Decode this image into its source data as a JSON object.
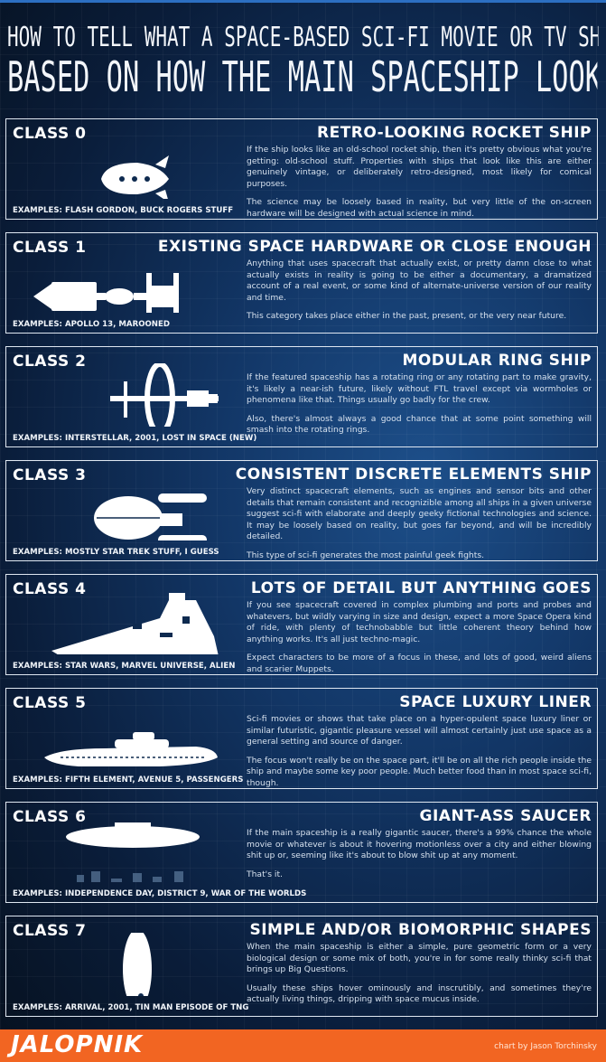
{
  "title": {
    "line1": "HOW TO TELL WHAT A SPACE-BASED SCI-FI MOVIE OR TV SHOW WILL BE LIKE",
    "line2": "BASED ON HOW THE MAIN SPACESHIP LOOKS"
  },
  "panels": [
    {
      "class_label": "CLASS 0",
      "heading": "RETRO-LOOKING ROCKET SHIP",
      "p1": "If the ship looks like an old-school rocket ship, then it's pretty obvious what you're getting: old-school stuff. Properties with ships that look like this are either genuinely vintage, or deliberately retro-designed, most likely for comical purposes.",
      "p2": "The science may be loosely based in reality, but very little of the on-screen hardware will be designed with actual science in mind.",
      "examples": "EXAMPLES: FLASH GORDON, BUCK ROGERS STUFF"
    },
    {
      "class_label": "CLASS 1",
      "heading": "EXISTING SPACE HARDWARE OR CLOSE ENOUGH",
      "p1": "Anything that uses spacecraft that actually exist, or pretty damn close to what actually exists in reality is going to be either a documentary, a dramatized account of a real event, or some kind of alternate-universe version of our reality and time.",
      "p2": "This category takes place either in the past, present, or the very near future.",
      "examples": "EXAMPLES: APOLLO 13, MAROONED"
    },
    {
      "class_label": "CLASS 2",
      "heading": "MODULAR RING SHIP",
      "p1": "If the featured spaceship has a rotating ring or any rotating part to make gravity, it's likely a near-ish future, likely without FTL travel except via wormholes or phenomena like that. Things usually go badly for the crew.",
      "p2": "Also, there's almost always a good chance that at some point something will smash into the rotating rings.",
      "examples": "EXAMPLES: INTERSTELLAR, 2001, LOST IN SPACE (NEW)"
    },
    {
      "class_label": "CLASS 3",
      "heading": "CONSISTENT DISCRETE ELEMENTS SHIP",
      "p1": "Very distinct spacecraft elements, such as engines and sensor bits and other details that remain consistent and recognizible among all ships in a given universe suggest sci-fi with elaborate and deeply geeky fictional technologies and science. It may be loosely based on reality, but goes far beyond, and will be incredibly detailed.",
      "p2": "This type of sci-fi generates the most painful geek fights.",
      "examples": "EXAMPLES: MOSTLY STAR TREK STUFF, I GUESS"
    },
    {
      "class_label": "CLASS 4",
      "heading": "LOTS OF DETAIL BUT ANYTHING GOES",
      "p1": "If you see spacecraft covered in complex plumbing and ports and probes and whatevers, but wildly varying in size and design, expect a more Space Opera kind of ride, with plenty of technobabble but little coherent theory behind how anything works. It's all just techno-magic.",
      "p2": "Expect characters to be more of a focus in these, and lots of good, weird aliens and scarier Muppets.",
      "examples": "EXAMPLES: STAR WARS, MARVEL UNIVERSE, ALIEN"
    },
    {
      "class_label": "CLASS 5",
      "heading": "SPACE LUXURY LINER",
      "p1": "Sci-fi movies or shows that take place on a hyper-opulent space luxury liner or similar futuristic, gigantic pleasure vessel will almost certainly just use space as a general setting and source of danger.",
      "p2": "The focus won't really be on the space part, it'll be on all the rich people inside the ship and maybe some key poor people. Much better food than in most space sci-fi, though.",
      "examples": "EXAMPLES: FIFTH ELEMENT, AVENUE 5, PASSENGERS"
    },
    {
      "class_label": "CLASS 6",
      "heading": "GIANT-ASS SAUCER",
      "p1": "If the main spaceship is a really gigantic saucer, there's a 99% chance the whole movie or whatever is about it hovering motionless over a city and either blowing shit up or, seeming like it's about to blow shit up at any moment.",
      "p2": "That's it.",
      "examples": "EXAMPLES: INDEPENDENCE DAY, DISTRICT 9, WAR OF THE WORLDS"
    },
    {
      "class_label": "CLASS 7",
      "heading": "SIMPLE AND/OR BIOMORPHIC SHAPES",
      "p1": "When the main spaceship is either a simple, pure geometric form or a very biological design or some mix of both, you're in for some really thinky sci-fi that brings up Big Questions.",
      "p2": "Usually these ships hover ominously and inscrutibly, and sometimes they're actually living things, dripping with space mucus inside.",
      "examples": "EXAMPLES: ARRIVAL, 2001, TIN MAN EPISODE OF TNG"
    }
  ],
  "footer": {
    "logo": "JALOPNIK",
    "credit": "chart by Jason Torchinsky"
  }
}
